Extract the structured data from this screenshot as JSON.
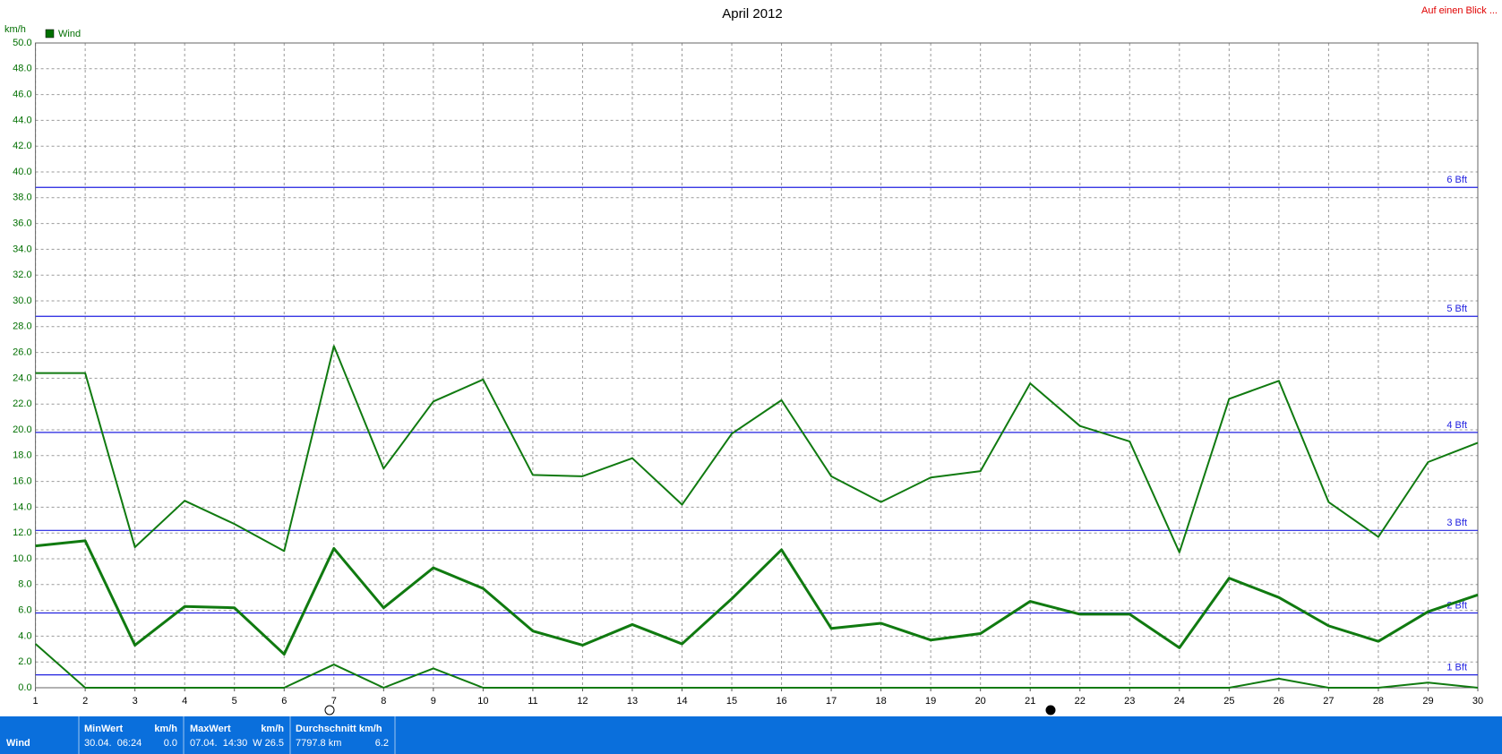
{
  "chart_data": {
    "type": "line",
    "title": "April 2012",
    "y_label": "km/h",
    "top_link": "Auf einen Blick ...",
    "legend": "Wind",
    "legend_color": "#006f00",
    "grid": true,
    "x": [
      1,
      2,
      3,
      4,
      5,
      6,
      7,
      8,
      9,
      10,
      11,
      12,
      13,
      14,
      15,
      16,
      17,
      18,
      19,
      20,
      21,
      22,
      23,
      24,
      25,
      26,
      27,
      28,
      29,
      30
    ],
    "xlim": [
      1,
      30
    ],
    "xticks": [
      1,
      2,
      3,
      4,
      5,
      6,
      7,
      8,
      9,
      10,
      11,
      12,
      13,
      14,
      15,
      16,
      17,
      18,
      19,
      20,
      21,
      22,
      23,
      24,
      25,
      26,
      27,
      28,
      29,
      30
    ],
    "ylim": [
      0,
      50
    ],
    "yticks": [
      {
        "value": 0,
        "label": "0.0"
      },
      {
        "value": 2,
        "label": "2.0"
      },
      {
        "value": 4,
        "label": "4.0"
      },
      {
        "value": 6,
        "label": "6.0"
      },
      {
        "value": 8,
        "label": "8.0"
      },
      {
        "value": 10,
        "label": "10.0"
      },
      {
        "value": 12,
        "label": "12.0"
      },
      {
        "value": 14,
        "label": "14.0"
      },
      {
        "value": 16,
        "label": "16.0"
      },
      {
        "value": 18,
        "label": "18.0"
      },
      {
        "value": 20,
        "label": "20.0"
      },
      {
        "value": 22,
        "label": "22.0"
      },
      {
        "value": 24,
        "label": "24.0"
      },
      {
        "value": 26,
        "label": "26.0"
      },
      {
        "value": 28,
        "label": "28.0"
      },
      {
        "value": 30,
        "label": "30.0"
      },
      {
        "value": 32,
        "label": "32.0"
      },
      {
        "value": 34,
        "label": "34.0"
      },
      {
        "value": 36,
        "label": "36.0"
      },
      {
        "value": 38,
        "label": "38.0"
      },
      {
        "value": 40,
        "label": "40.0"
      },
      {
        "value": 42,
        "label": "42.0"
      },
      {
        "value": 44,
        "label": "44.0"
      },
      {
        "value": 46,
        "label": "46.0"
      },
      {
        "value": 48,
        "label": "48.0"
      },
      {
        "value": 50,
        "label": "50.0"
      }
    ],
    "ref_color": "#2020e0",
    "ref_lines": [
      {
        "value": 1,
        "label": "1 Bft"
      },
      {
        "value": 5.8,
        "label": "2 Bft"
      },
      {
        "value": 12.2,
        "label": "3 Bft"
      },
      {
        "value": 19.8,
        "label": "4 Bft"
      },
      {
        "value": 28.8,
        "label": "5 Bft"
      },
      {
        "value": 38.8,
        "label": "6 Bft"
      }
    ],
    "series": [
      {
        "color": "#107a10",
        "width": 2,
        "values": [
          24.4,
          24.4,
          10.9,
          14.5,
          12.7,
          10.6,
          26.5,
          17.0,
          22.2,
          23.9,
          16.5,
          16.4,
          17.8,
          14.2,
          19.7,
          22.3,
          16.4,
          14.4,
          16.3,
          16.8,
          23.6,
          20.3,
          19.1,
          10.5,
          22.4,
          23.8,
          14.4,
          11.7,
          17.5,
          19.0
        ]
      },
      {
        "color": "#107a10",
        "width": 3,
        "values": [
          11.0,
          11.4,
          3.3,
          6.3,
          6.2,
          2.6,
          10.8,
          6.2,
          9.3,
          7.7,
          4.4,
          3.3,
          4.9,
          3.4,
          6.9,
          10.7,
          4.6,
          5.0,
          3.7,
          4.2,
          6.7,
          5.7,
          5.7,
          3.1,
          8.5,
          7.0,
          4.8,
          3.6,
          5.9,
          7.2
        ]
      },
      {
        "color": "#107a10",
        "width": 2,
        "values": [
          3.4,
          0,
          0,
          0,
          0,
          0,
          1.8,
          0,
          1.5,
          0,
          0,
          0,
          0,
          0,
          0,
          0,
          0,
          0,
          0,
          0,
          0,
          0,
          0,
          0,
          0,
          0.7,
          0,
          0,
          0.4,
          0
        ]
      }
    ]
  },
  "footer": {
    "name": "Wind",
    "min": {
      "header": "MinWert",
      "unit": "km/h",
      "time": "30.04.  06:24",
      "value": "0.0"
    },
    "max": {
      "header": "MaxWert",
      "unit": "km/h",
      "time": "07.04.  14:30",
      "value": "W 26.5"
    },
    "avg": {
      "header": "Durchschnitt km/h",
      "distance": "7797.8 km",
      "value": "6.2"
    }
  }
}
